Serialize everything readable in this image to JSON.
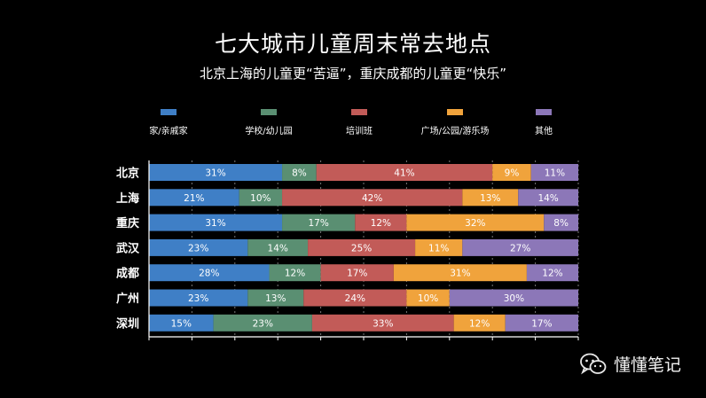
{
  "chart_data": {
    "type": "bar",
    "orientation": "horizontal",
    "stacked": true,
    "title": "七大城市儿童周末常去地点",
    "subtitle": "北京上海的儿童更“苦逼”，重庆成都的儿童更“快乐”",
    "categories": [
      "北京",
      "上海",
      "重庆",
      "武汉",
      "成都",
      "广州",
      "深圳"
    ],
    "series": [
      {
        "name": "家/亲戚家",
        "color": "#3f7fc6",
        "values": [
          31,
          21,
          31,
          23,
          28,
          23,
          15
        ]
      },
      {
        "name": "学校/幼儿园",
        "color": "#5a8f72",
        "values": [
          8,
          10,
          17,
          14,
          12,
          13,
          23
        ]
      },
      {
        "name": "培训班",
        "color": "#c25b58",
        "values": [
          41,
          42,
          12,
          25,
          17,
          24,
          33
        ]
      },
      {
        "name": "广场/公园/游乐场",
        "color": "#f0a33c",
        "values": [
          9,
          13,
          32,
          11,
          31,
          10,
          12
        ]
      },
      {
        "name": "其他",
        "color": "#8c77b8",
        "values": [
          11,
          14,
          8,
          27,
          12,
          30,
          17
        ]
      }
    ],
    "xlim": [
      0,
      100
    ],
    "legend": "top",
    "grid": true
  },
  "watermark": {
    "icon": "wechat-icon",
    "text": "懂懂笔记"
  }
}
